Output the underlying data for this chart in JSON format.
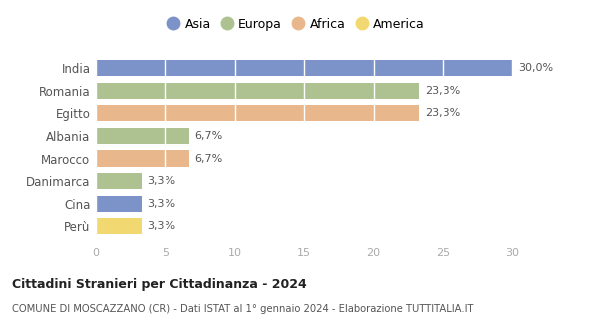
{
  "categories": [
    "India",
    "Romania",
    "Egitto",
    "Albania",
    "Marocco",
    "Danimarca",
    "Cina",
    "Perù"
  ],
  "values": [
    30.0,
    23.3,
    23.3,
    6.7,
    6.7,
    3.3,
    3.3,
    3.3
  ],
  "labels": [
    "30,0%",
    "23,3%",
    "23,3%",
    "6,7%",
    "6,7%",
    "3,3%",
    "3,3%",
    "3,3%"
  ],
  "colors": [
    "#7b93c8",
    "#adc191",
    "#e8b88c",
    "#adc191",
    "#e8b88c",
    "#adc191",
    "#7b93c8",
    "#f2d870"
  ],
  "legend": [
    {
      "label": "Asia",
      "color": "#7b93c8"
    },
    {
      "label": "Europa",
      "color": "#adc191"
    },
    {
      "label": "Africa",
      "color": "#e8b88c"
    },
    {
      "label": "America",
      "color": "#f2d870"
    }
  ],
  "xlim": [
    0,
    32
  ],
  "xticks": [
    0,
    5,
    10,
    15,
    20,
    25,
    30
  ],
  "title": "Cittadini Stranieri per Cittadinanza - 2024",
  "subtitle": "COMUNE DI MOSCAZZANO (CR) - Dati ISTAT al 1° gennaio 2024 - Elaborazione TUTTITALIA.IT",
  "background_color": "#ffffff"
}
